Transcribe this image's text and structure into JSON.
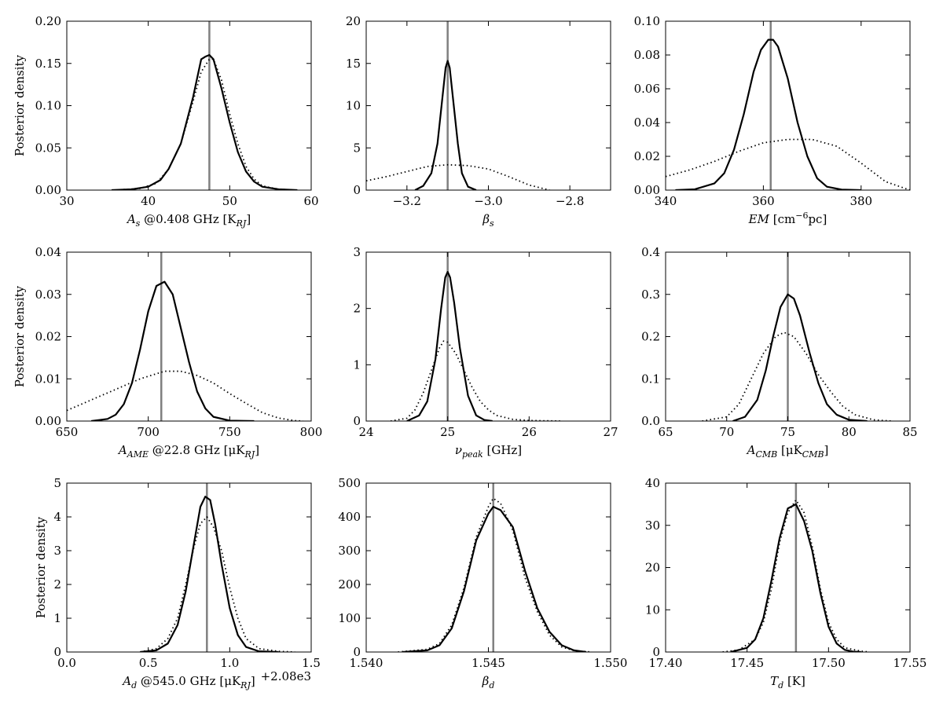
{
  "chart_data": [
    {
      "type": "line",
      "xlabel": "As @0.408 GHz [KRJ]",
      "ylabel": "Posterior density",
      "xlim": [
        30,
        60
      ],
      "ylim": [
        0,
        0.2
      ],
      "xticks": [
        "30",
        "40",
        "50",
        "60"
      ],
      "yticks": [
        "0.00",
        "0.05",
        "0.10",
        "0.15",
        "0.20"
      ],
      "xtick_values": [
        30,
        40,
        50,
        60
      ],
      "ytick_values": [
        0,
        0.05,
        0.1,
        0.15,
        0.2
      ],
      "vline": 47.5,
      "series": [
        {
          "style": "solid",
          "x": [
            35.5,
            38,
            40,
            41.5,
            42.5,
            44,
            45.5,
            46.5,
            47,
            47.5,
            48,
            49,
            50,
            51,
            52,
            53,
            54,
            56,
            58.3
          ],
          "y": [
            0,
            0.001,
            0.004,
            0.012,
            0.025,
            0.055,
            0.11,
            0.155,
            0.158,
            0.16,
            0.155,
            0.12,
            0.08,
            0.045,
            0.022,
            0.01,
            0.004,
            0.001,
            0
          ]
        },
        {
          "style": "dotted",
          "x": [
            36,
            39,
            41,
            42.5,
            44,
            45.5,
            46.5,
            47.5,
            48,
            49,
            50,
            51,
            52,
            53,
            54,
            56,
            58
          ],
          "y": [
            0,
            0.002,
            0.008,
            0.025,
            0.055,
            0.105,
            0.14,
            0.155,
            0.155,
            0.13,
            0.09,
            0.055,
            0.028,
            0.013,
            0.005,
            0.001,
            0
          ]
        }
      ]
    },
    {
      "type": "line",
      "xlabel": "βs",
      "ylabel": "",
      "xlim": [
        -3.3,
        -2.7
      ],
      "ylim": [
        0,
        20
      ],
      "xticks": [
        "−3.2",
        "−3.0",
        "−2.8"
      ],
      "yticks": [
        "0",
        "5",
        "10",
        "15",
        "20"
      ],
      "xtick_values": [
        -3.2,
        -3.0,
        -2.8
      ],
      "ytick_values": [
        0,
        5,
        10,
        15,
        20
      ],
      "vline": -3.1,
      "series": [
        {
          "style": "solid",
          "x": [
            -3.18,
            -3.16,
            -3.14,
            -3.125,
            -3.115,
            -3.105,
            -3.1,
            -3.095,
            -3.085,
            -3.075,
            -3.065,
            -3.05,
            -3.03
          ],
          "y": [
            0,
            0.5,
            2,
            5.5,
            10,
            14.5,
            15.3,
            14.5,
            10,
            5.5,
            2,
            0.4,
            0
          ]
        },
        {
          "style": "dotted",
          "x": [
            -3.3,
            -3.25,
            -3.2,
            -3.15,
            -3.1,
            -3.05,
            -3.0,
            -2.95,
            -2.9,
            -2.85
          ],
          "y": [
            1.1,
            1.6,
            2.2,
            2.8,
            3.0,
            2.9,
            2.5,
            1.6,
            0.6,
            0
          ]
        }
      ]
    },
    {
      "type": "line",
      "xlabel": "EM [cm−6pc]",
      "ylabel": "",
      "xlim": [
        340,
        390
      ],
      "ylim": [
        0,
        0.1
      ],
      "xticks": [
        "340",
        "360",
        "380"
      ],
      "yticks": [
        "0.00",
        "0.02",
        "0.04",
        "0.06",
        "0.08",
        "0.10"
      ],
      "xtick_values": [
        340,
        360,
        380
      ],
      "ytick_values": [
        0,
        0.02,
        0.04,
        0.06,
        0.08,
        0.1
      ],
      "vline": 361.5,
      "series": [
        {
          "style": "solid",
          "x": [
            342,
            346,
            350,
            352,
            354,
            356,
            358,
            359.5,
            361,
            362,
            363,
            365,
            367,
            369,
            371,
            373,
            376,
            380
          ],
          "y": [
            0,
            0.0005,
            0.004,
            0.01,
            0.024,
            0.045,
            0.07,
            0.083,
            0.089,
            0.089,
            0.085,
            0.066,
            0.04,
            0.02,
            0.007,
            0.002,
            0.0003,
            0
          ]
        },
        {
          "style": "dotted",
          "x": [
            340,
            345,
            350,
            355,
            360,
            365,
            370,
            375,
            380,
            385,
            390
          ],
          "y": [
            0.008,
            0.012,
            0.017,
            0.023,
            0.028,
            0.03,
            0.03,
            0.026,
            0.016,
            0.005,
            0
          ]
        }
      ]
    },
    {
      "type": "line",
      "xlabel": "AAME @22.8 GHz [μKRJ]",
      "ylabel": "Posterior density",
      "xlim": [
        650,
        800
      ],
      "ylim": [
        0,
        0.04
      ],
      "xticks": [
        "650",
        "700",
        "750",
        "800"
      ],
      "yticks": [
        "0.00",
        "0.01",
        "0.02",
        "0.03",
        "0.04"
      ],
      "xtick_values": [
        650,
        700,
        750,
        800
      ],
      "ytick_values": [
        0,
        0.01,
        0.02,
        0.03,
        0.04
      ],
      "vline": 708,
      "series": [
        {
          "style": "solid",
          "x": [
            665,
            675,
            680,
            685,
            690,
            695,
            700,
            705,
            710,
            715,
            720,
            725,
            730,
            735,
            740,
            750,
            765
          ],
          "y": [
            0,
            0.0005,
            0.0015,
            0.004,
            0.009,
            0.017,
            0.026,
            0.032,
            0.033,
            0.03,
            0.022,
            0.014,
            0.007,
            0.003,
            0.001,
            0.0001,
            0
          ]
        },
        {
          "style": "dotted",
          "x": [
            650,
            665,
            680,
            695,
            710,
            720,
            730,
            740,
            750,
            760,
            770,
            780,
            790,
            795
          ],
          "y": [
            0.0025,
            0.005,
            0.0075,
            0.01,
            0.0118,
            0.0118,
            0.0108,
            0.009,
            0.0065,
            0.0042,
            0.002,
            0.0007,
            0.0001,
            0
          ]
        }
      ]
    },
    {
      "type": "line",
      "xlabel": "νpeak [GHz]",
      "ylabel": "",
      "xlim": [
        24,
        27
      ],
      "ylim": [
        0,
        3
      ],
      "xticks": [
        "24",
        "25",
        "26",
        "27"
      ],
      "yticks": [
        "0",
        "1",
        "2",
        "3"
      ],
      "xtick_values": [
        24,
        25,
        26,
        27
      ],
      "ytick_values": [
        0,
        1,
        2,
        3
      ],
      "vline": 25.0,
      "series": [
        {
          "style": "solid",
          "x": [
            24.5,
            24.65,
            24.75,
            24.85,
            24.92,
            24.97,
            25.0,
            25.03,
            25.08,
            25.15,
            25.25,
            25.35,
            25.45,
            25.55
          ],
          "y": [
            0,
            0.1,
            0.35,
            1.1,
            2.0,
            2.55,
            2.65,
            2.55,
            2.1,
            1.3,
            0.45,
            0.1,
            0.02,
            0
          ]
        },
        {
          "style": "dotted",
          "x": [
            24.3,
            24.5,
            24.6,
            24.7,
            24.8,
            24.9,
            24.95,
            25.0,
            25.1,
            25.2,
            25.3,
            25.4,
            25.5,
            25.6,
            25.8,
            26.0,
            26.4
          ],
          "y": [
            0,
            0.05,
            0.2,
            0.5,
            0.9,
            1.3,
            1.42,
            1.4,
            1.2,
            0.9,
            0.6,
            0.35,
            0.2,
            0.1,
            0.03,
            0.01,
            0
          ]
        }
      ]
    },
    {
      "type": "line",
      "xlabel": "ACMB [μKCMB]",
      "ylabel": "",
      "xlim": [
        65,
        85
      ],
      "ylim": [
        0,
        0.4
      ],
      "xticks": [
        "65",
        "70",
        "75",
        "80",
        "85"
      ],
      "yticks": [
        "0.0",
        "0.1",
        "0.2",
        "0.3",
        "0.4"
      ],
      "xtick_values": [
        65,
        70,
        75,
        80,
        85
      ],
      "ytick_values": [
        0,
        0.1,
        0.2,
        0.3,
        0.4
      ],
      "vline": 75,
      "series": [
        {
          "style": "solid",
          "x": [
            70.5,
            71.5,
            72.5,
            73.2,
            73.8,
            74.4,
            75,
            75.5,
            76,
            76.8,
            77.5,
            78.2,
            79,
            80,
            81.5
          ],
          "y": [
            0,
            0.01,
            0.05,
            0.12,
            0.2,
            0.27,
            0.3,
            0.29,
            0.25,
            0.16,
            0.09,
            0.04,
            0.015,
            0.003,
            0
          ]
        },
        {
          "style": "dotted",
          "x": [
            68,
            70,
            71,
            72,
            73,
            74,
            74.7,
            75.5,
            76.5,
            77.5,
            78.5,
            79.5,
            80.5,
            82,
            83.5
          ],
          "y": [
            0,
            0.01,
            0.04,
            0.1,
            0.16,
            0.2,
            0.21,
            0.2,
            0.16,
            0.11,
            0.07,
            0.035,
            0.015,
            0.003,
            0
          ]
        }
      ]
    },
    {
      "type": "line",
      "xlabel": "Ad @545.0 GHz [μKRJ]",
      "offset_label": "+2.08e3",
      "ylabel": "Posterior density",
      "xlim": [
        0,
        1.5
      ],
      "ylim": [
        0,
        5
      ],
      "xticks": [
        "0.0",
        "0.5",
        "1.0",
        "1.5"
      ],
      "yticks": [
        "0",
        "1",
        "2",
        "3",
        "4",
        "5"
      ],
      "xtick_values": [
        0,
        0.5,
        1.0,
        1.5
      ],
      "ytick_values": [
        0,
        1,
        2,
        3,
        4,
        5
      ],
      "vline": 0.86,
      "series": [
        {
          "style": "solid",
          "x": [
            0.45,
            0.55,
            0.62,
            0.68,
            0.73,
            0.78,
            0.82,
            0.85,
            0.88,
            0.91,
            0.95,
            1.0,
            1.05,
            1.1,
            1.18,
            1.3
          ],
          "y": [
            0,
            0.05,
            0.25,
            0.8,
            1.8,
            3.2,
            4.3,
            4.6,
            4.5,
            3.8,
            2.6,
            1.3,
            0.5,
            0.15,
            0.02,
            0
          ]
        },
        {
          "style": "dotted",
          "x": [
            0.45,
            0.55,
            0.62,
            0.68,
            0.73,
            0.78,
            0.82,
            0.86,
            0.9,
            0.95,
            1.0,
            1.05,
            1.1,
            1.18,
            1.3,
            1.4
          ],
          "y": [
            0,
            0.1,
            0.4,
            1.0,
            2.0,
            3.1,
            3.8,
            4.0,
            3.7,
            3.0,
            1.9,
            1.0,
            0.4,
            0.1,
            0.02,
            0
          ]
        }
      ]
    },
    {
      "type": "line",
      "xlabel": "βd",
      "ylabel": "",
      "xlim": [
        1.54,
        1.55
      ],
      "ylim": [
        0,
        500
      ],
      "xticks": [
        "1.540",
        "1.545",
        "1.550"
      ],
      "yticks": [
        "0",
        "100",
        "200",
        "300",
        "400",
        "500"
      ],
      "xtick_values": [
        1.54,
        1.545,
        1.55
      ],
      "ytick_values": [
        0,
        100,
        200,
        300,
        400,
        500
      ],
      "vline": 1.5452,
      "series": [
        {
          "style": "solid",
          "x": [
            1.5415,
            1.5425,
            1.543,
            1.5435,
            1.544,
            1.5445,
            1.545,
            1.5452,
            1.5455,
            1.546,
            1.5465,
            1.547,
            1.5475,
            1.548,
            1.5485,
            1.549
          ],
          "y": [
            0,
            5,
            20,
            70,
            180,
            330,
            410,
            430,
            420,
            370,
            240,
            130,
            60,
            20,
            5,
            0
          ]
        },
        {
          "style": "dotted",
          "x": [
            1.5413,
            1.5425,
            1.543,
            1.5435,
            1.544,
            1.5445,
            1.545,
            1.5452,
            1.5455,
            1.546,
            1.5465,
            1.547,
            1.5475,
            1.548,
            1.5485,
            1.5492
          ],
          "y": [
            0,
            8,
            25,
            80,
            190,
            340,
            430,
            455,
            440,
            360,
            220,
            120,
            50,
            15,
            4,
            0
          ]
        }
      ]
    },
    {
      "type": "line",
      "xlabel": "Td [K]",
      "ylabel": "",
      "xlim": [
        17.4,
        17.55
      ],
      "ylim": [
        0,
        40
      ],
      "xticks": [
        "17.40",
        "17.45",
        "17.50",
        "17.55"
      ],
      "yticks": [
        "0",
        "10",
        "20",
        "30",
        "40"
      ],
      "xtick_values": [
        17.4,
        17.45,
        17.5,
        17.55
      ],
      "ytick_values": [
        0,
        10,
        20,
        30,
        40
      ],
      "vline": 17.48,
      "series": [
        {
          "style": "solid",
          "x": [
            17.44,
            17.45,
            17.455,
            17.46,
            17.465,
            17.47,
            17.475,
            17.48,
            17.485,
            17.49,
            17.495,
            17.5,
            17.505,
            17.51,
            17.515,
            17.52
          ],
          "y": [
            0,
            1,
            3,
            8,
            17,
            27,
            34,
            35,
            31,
            24,
            14,
            6,
            2,
            0.5,
            0.1,
            0
          ]
        },
        {
          "style": "dotted",
          "x": [
            17.435,
            17.445,
            17.455,
            17.46,
            17.465,
            17.47,
            17.475,
            17.48,
            17.485,
            17.49,
            17.495,
            17.5,
            17.505,
            17.51,
            17.52,
            17.525
          ],
          "y": [
            0,
            0.5,
            3,
            7,
            15,
            26,
            33,
            36,
            33,
            25,
            15,
            7,
            3,
            1,
            0.2,
            0
          ]
        }
      ]
    }
  ]
}
